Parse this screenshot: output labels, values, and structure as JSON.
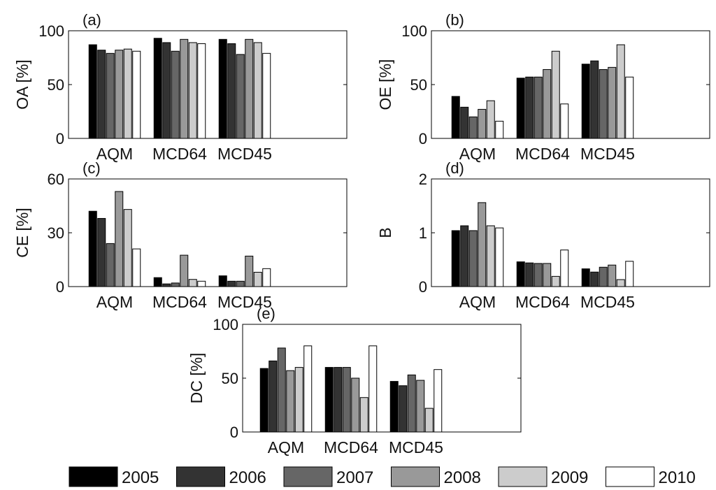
{
  "chart_data": {
    "type": "bar",
    "series_names": [
      "2005",
      "2006",
      "2007",
      "2008",
      "2009",
      "2010"
    ],
    "series_colors": [
      "#000000",
      "#333333",
      "#666666",
      "#999999",
      "#cccccc",
      "#ffffff"
    ],
    "categories": [
      "AQM",
      "MCD64",
      "MCD45"
    ],
    "panels": [
      {
        "id": "a",
        "label": "(a)",
        "ylabel": "OA [%]",
        "ylim": [
          0,
          100
        ],
        "yticks": [
          0,
          50,
          100
        ],
        "values": {
          "AQM": [
            87,
            82,
            79,
            82,
            83,
            81
          ],
          "MCD64": [
            93,
            89,
            81,
            92,
            89,
            88
          ],
          "MCD45": [
            92,
            88,
            78,
            92,
            89,
            79
          ]
        }
      },
      {
        "id": "b",
        "label": "(b)",
        "ylabel": "OE [%]",
        "ylim": [
          0,
          100
        ],
        "yticks": [
          0,
          50,
          100
        ],
        "values": {
          "AQM": [
            39,
            29,
            20,
            27,
            35,
            16
          ],
          "MCD64": [
            56,
            57,
            57,
            64,
            81,
            32
          ],
          "MCD45": [
            69,
            72,
            64,
            66,
            87,
            57
          ]
        }
      },
      {
        "id": "c",
        "label": "(c)",
        "ylabel": "CE [%]",
        "ylim": [
          0,
          60
        ],
        "yticks": [
          0,
          30,
          60
        ],
        "values": {
          "AQM": [
            42,
            38,
            24,
            53,
            43,
            21
          ],
          "MCD64": [
            5,
            1.5,
            2,
            17.5,
            4,
            3
          ],
          "MCD45": [
            6,
            3,
            3,
            17,
            8,
            10
          ]
        }
      },
      {
        "id": "d",
        "label": "(d)",
        "ylabel": "B",
        "ylim": [
          0,
          2
        ],
        "yticks": [
          0,
          1,
          2
        ],
        "values": {
          "AQM": [
            1.04,
            1.13,
            1.04,
            1.56,
            1.13,
            1.09
          ],
          "MCD64": [
            0.46,
            0.44,
            0.43,
            0.43,
            0.19,
            0.68
          ],
          "MCD45": [
            0.33,
            0.27,
            0.36,
            0.4,
            0.13,
            0.47
          ]
        }
      },
      {
        "id": "e",
        "label": "(e)",
        "ylabel": "DC [%]",
        "ylim": [
          0,
          100
        ],
        "yticks": [
          0,
          50,
          100
        ],
        "values": {
          "AQM": [
            59,
            66,
            78,
            57,
            60,
            80
          ],
          "MCD64": [
            60,
            60,
            60,
            50,
            32,
            80
          ],
          "MCD45": [
            47,
            43,
            53,
            48,
            22,
            58
          ]
        }
      }
    ],
    "legend": {
      "position": "bottom",
      "entries": [
        "2005",
        "2006",
        "2007",
        "2008",
        "2009",
        "2010"
      ]
    }
  }
}
